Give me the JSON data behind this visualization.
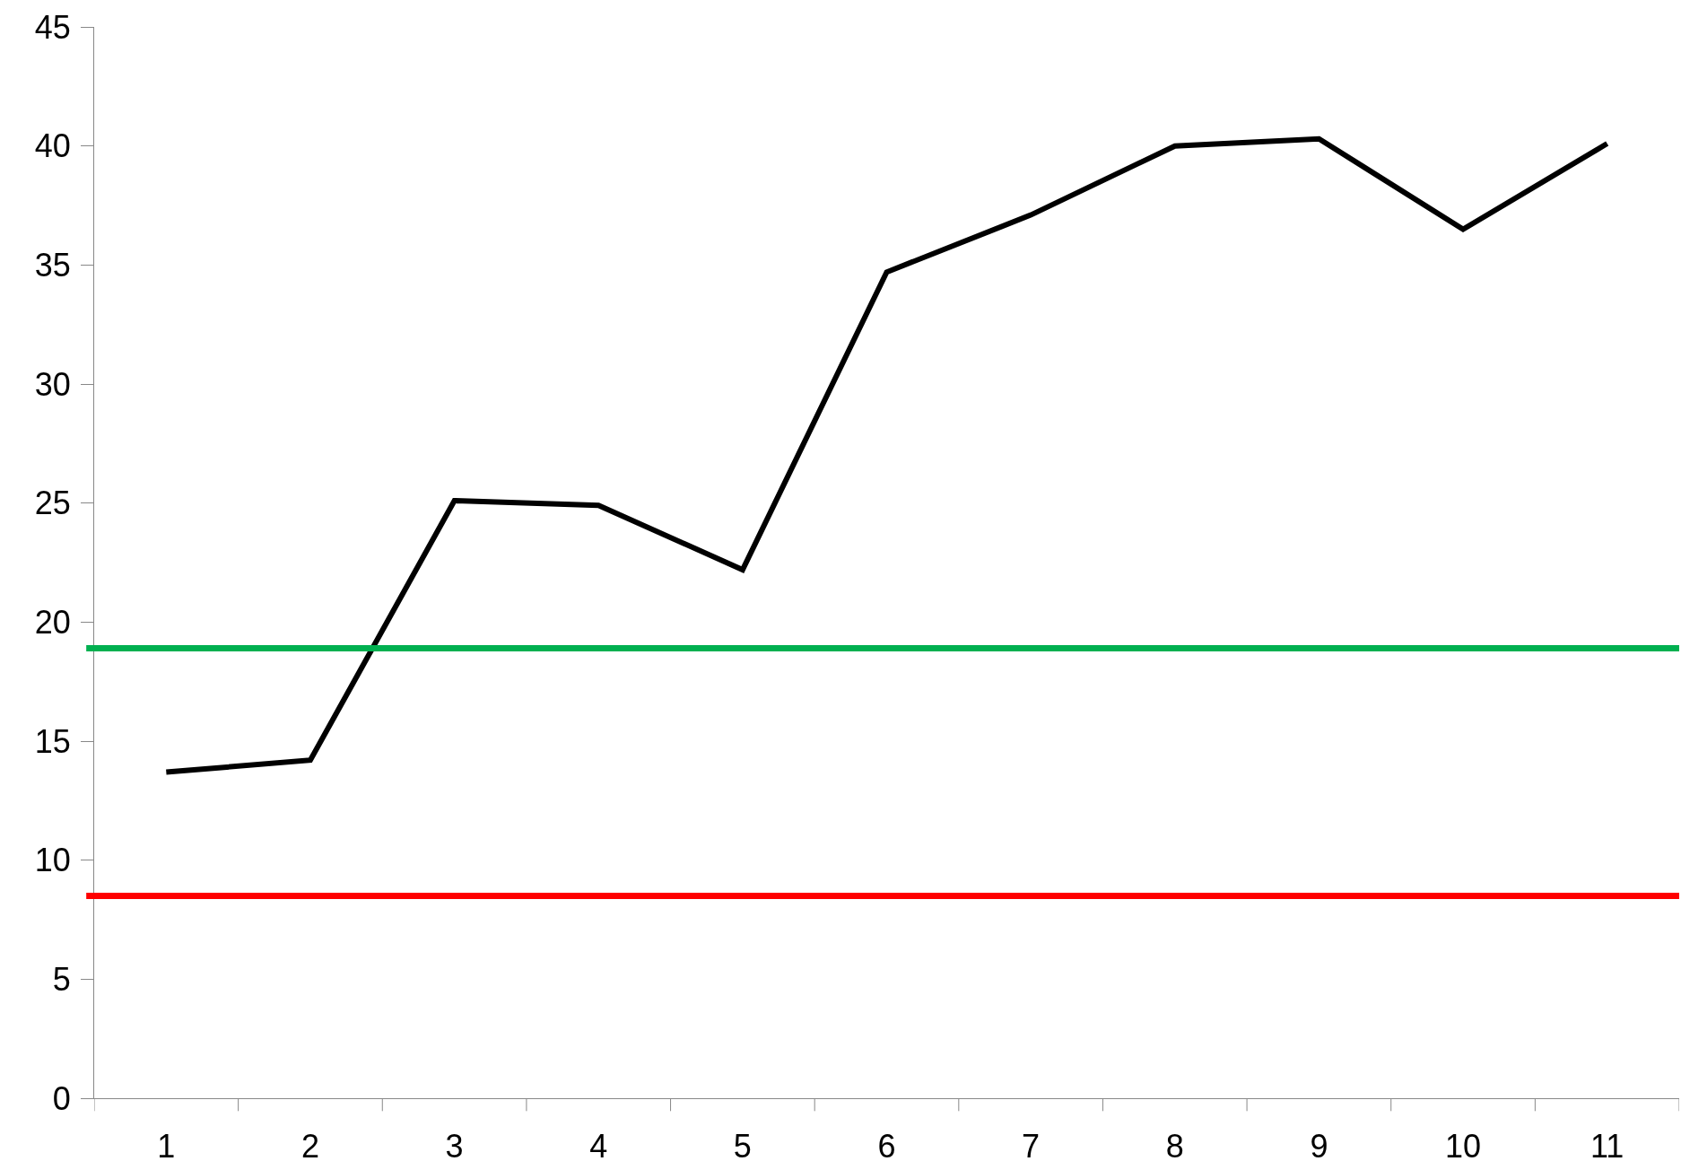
{
  "chart_data": {
    "type": "line",
    "categories": [
      "1",
      "2",
      "3",
      "4",
      "5",
      "6",
      "7",
      "8",
      "9",
      "10",
      "11"
    ],
    "series": [
      {
        "color": "#000000",
        "values": [
          13.7,
          14.2,
          25.1,
          24.9,
          22.2,
          34.7,
          37.1,
          40.0,
          40.3,
          36.5,
          40.1
        ]
      }
    ],
    "ylim": [
      0,
      45
    ],
    "yticks": [
      0,
      5,
      10,
      15,
      20,
      25,
      30,
      35,
      40,
      45
    ],
    "marker": "none",
    "line_style": "solid",
    "ref_lines": [
      {
        "axis": "y",
        "value": 18.9,
        "color": "#00b050"
      },
      {
        "axis": "y",
        "value": 8.5,
        "color": "#ff0000"
      }
    ]
  }
}
